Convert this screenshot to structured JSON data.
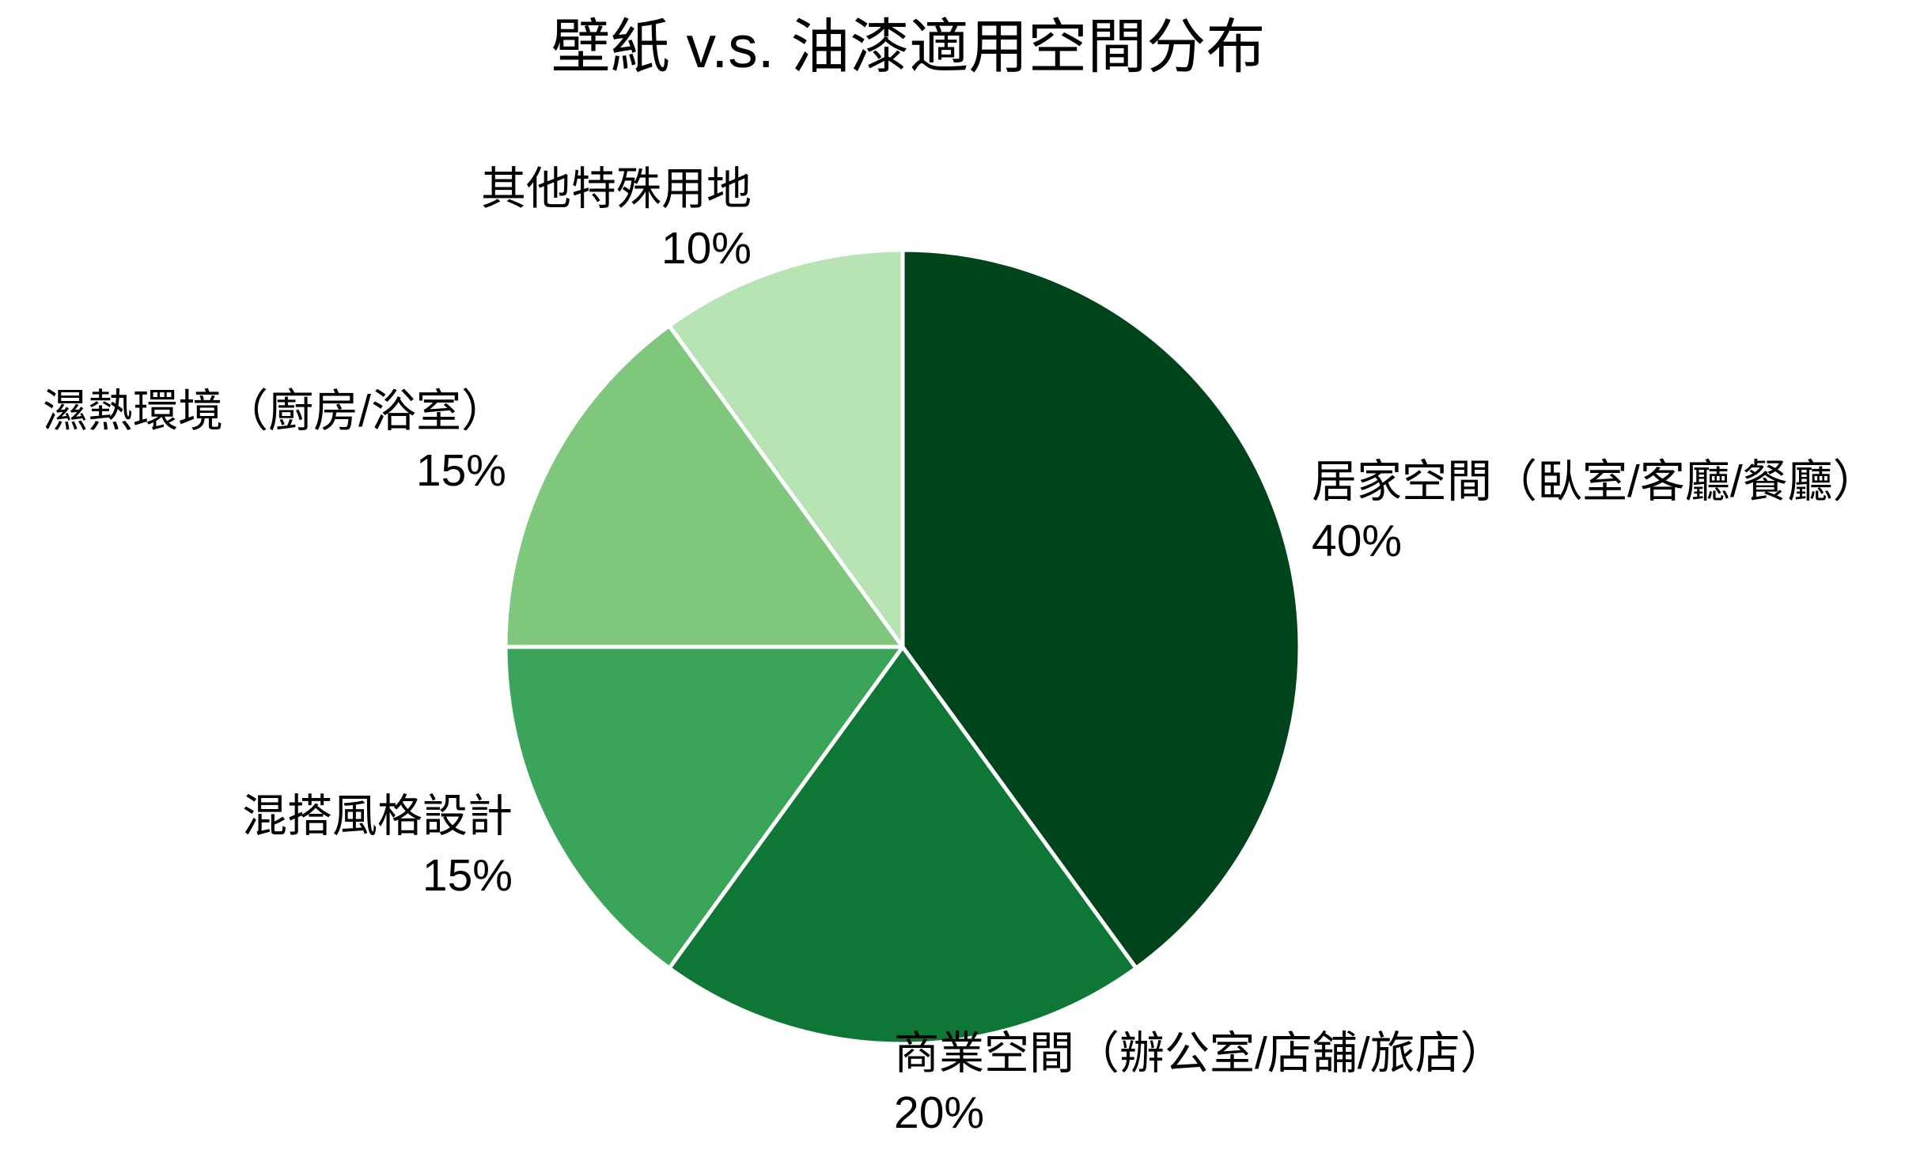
{
  "page": {
    "background_color": "#ffffff",
    "text_color": "#000000"
  },
  "chart_data": {
    "type": "pie",
    "title": "壁紙 v.s. 油漆適用空間分布",
    "unit": "%",
    "direction": "clockwise",
    "start_angle": "12-o'clock",
    "legend": "none",
    "labels_position": "outside",
    "stroke": {
      "color": "#ffffff",
      "width": 5
    },
    "slices": [
      {
        "label": "居家空間（臥室/客廳/餐廳）",
        "value": 40,
        "pct_label": "40%",
        "color": "#00441b"
      },
      {
        "label": "商業空間（辦公室/店舖/旅店）",
        "value": 20,
        "pct_label": "20%",
        "color": "#0e7735"
      },
      {
        "label": "混搭風格設計",
        "value": 15,
        "pct_label": "15%",
        "color": "#3aa458"
      },
      {
        "label": "濕熱環境（廚房/浴室）",
        "value": 15,
        "pct_label": "15%",
        "color": "#7ec77d"
      },
      {
        "label": "其他特殊用地",
        "value": 10,
        "pct_label": "10%",
        "color": "#b8e3b4"
      }
    ]
  }
}
